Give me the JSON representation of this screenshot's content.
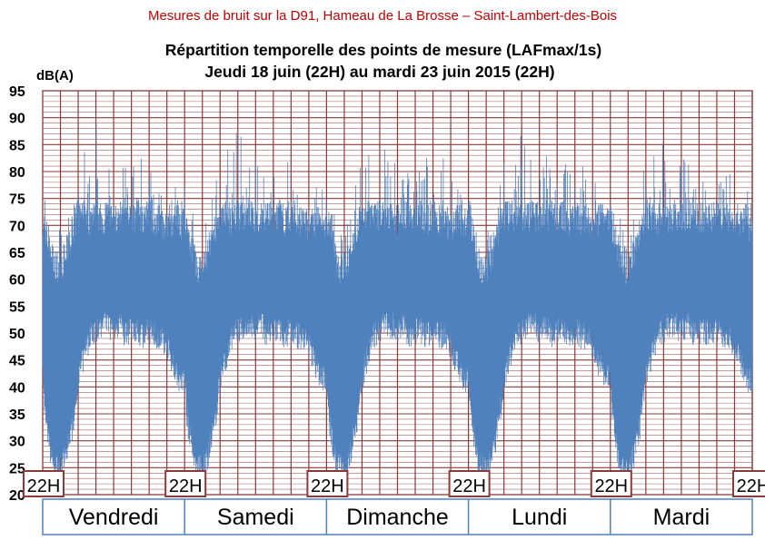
{
  "page": {
    "header_title": "Mesures de bruit sur la D91, Hameau de La Brosse – Saint-Lambert-des-Bois"
  },
  "colors": {
    "header": "#c00000",
    "series": "#4f81bd",
    "grid": "#8b3a3a",
    "day_box": "#4f81bd"
  },
  "chart_data": {
    "type": "area",
    "title": "Répartition temporelle des points de mesure (LAFmax/1s)",
    "subtitle": "Jeudi 18 juin (22H) au mardi 23 juin 2015 (22H)",
    "ylabel": "dB(A)",
    "ylim": [
      20,
      95
    ],
    "yticks": [
      95,
      90,
      85,
      80,
      75,
      70,
      65,
      60,
      55,
      50,
      45,
      40,
      35,
      30,
      25,
      20
    ],
    "time_markers": [
      "22H",
      "22H",
      "22H",
      "22H",
      "22H",
      "22H"
    ],
    "days": [
      "Vendredi",
      "Samedi",
      "Dimanche",
      "Lundi",
      "Mardi"
    ],
    "grid": true,
    "series": [
      {
        "hours": [
          0,
          0.5,
          1,
          1.5,
          2,
          3,
          4,
          5,
          6,
          7,
          8,
          9,
          10,
          11,
          12,
          13,
          14,
          15,
          16,
          17,
          18,
          19,
          20,
          21,
          22,
          22.5,
          23,
          23.5,
          24
        ],
        "upper": [
          72,
          70,
          68,
          66,
          63,
          63,
          66,
          70,
          73,
          73,
          72,
          73,
          72,
          73,
          72,
          73,
          73,
          72,
          73,
          72,
          73,
          72,
          72,
          71,
          72,
          72,
          72,
          71,
          72
        ],
        "lower": [
          42,
          34,
          30,
          27,
          26,
          25,
          28,
          33,
          42,
          46,
          50,
          51,
          52,
          52,
          51,
          52,
          50,
          51,
          51,
          50,
          51,
          50,
          50,
          48,
          45,
          44,
          42,
          42,
          42
        ],
        "peak_max": [
          78,
          76,
          74,
          72,
          70,
          70,
          73,
          78,
          82,
          85,
          83,
          90,
          84,
          82,
          83,
          84,
          82,
          80,
          83,
          84,
          82,
          81,
          83,
          80,
          78,
          78,
          77,
          77,
          78
        ]
      }
    ]
  }
}
